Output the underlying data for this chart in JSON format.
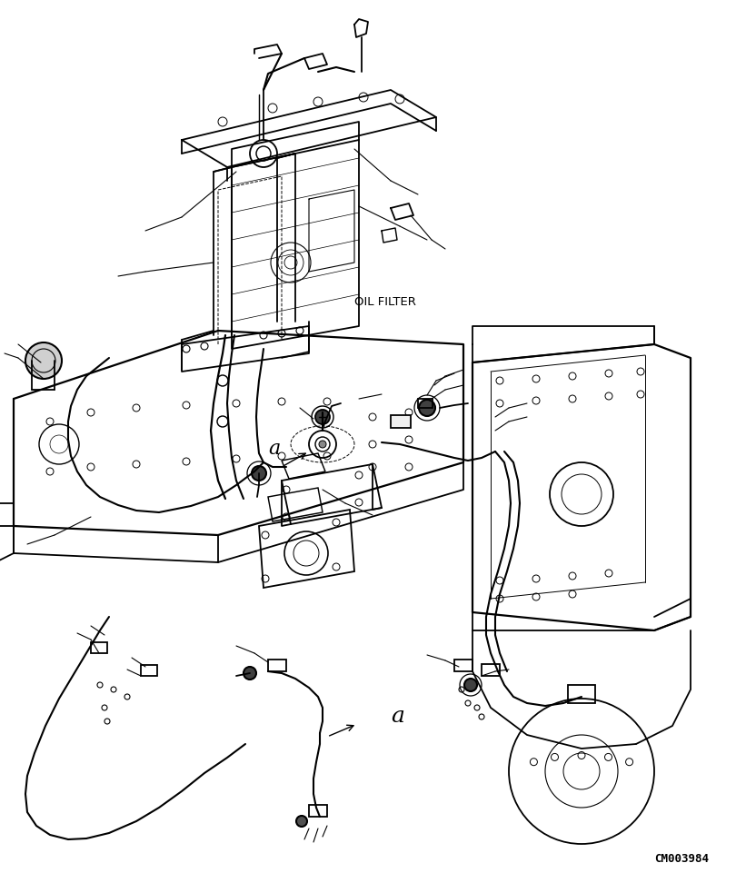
{
  "background_color": "#ffffff",
  "watermark_text": "CM003984",
  "watermark_fontsize": 9,
  "oil_filter_text": "OIL FILTER",
  "label_a_text": "a",
  "line_color": "#000000",
  "line_width": 1.3,
  "fig_width": 8.21,
  "fig_height": 9.62,
  "dpi": 100
}
